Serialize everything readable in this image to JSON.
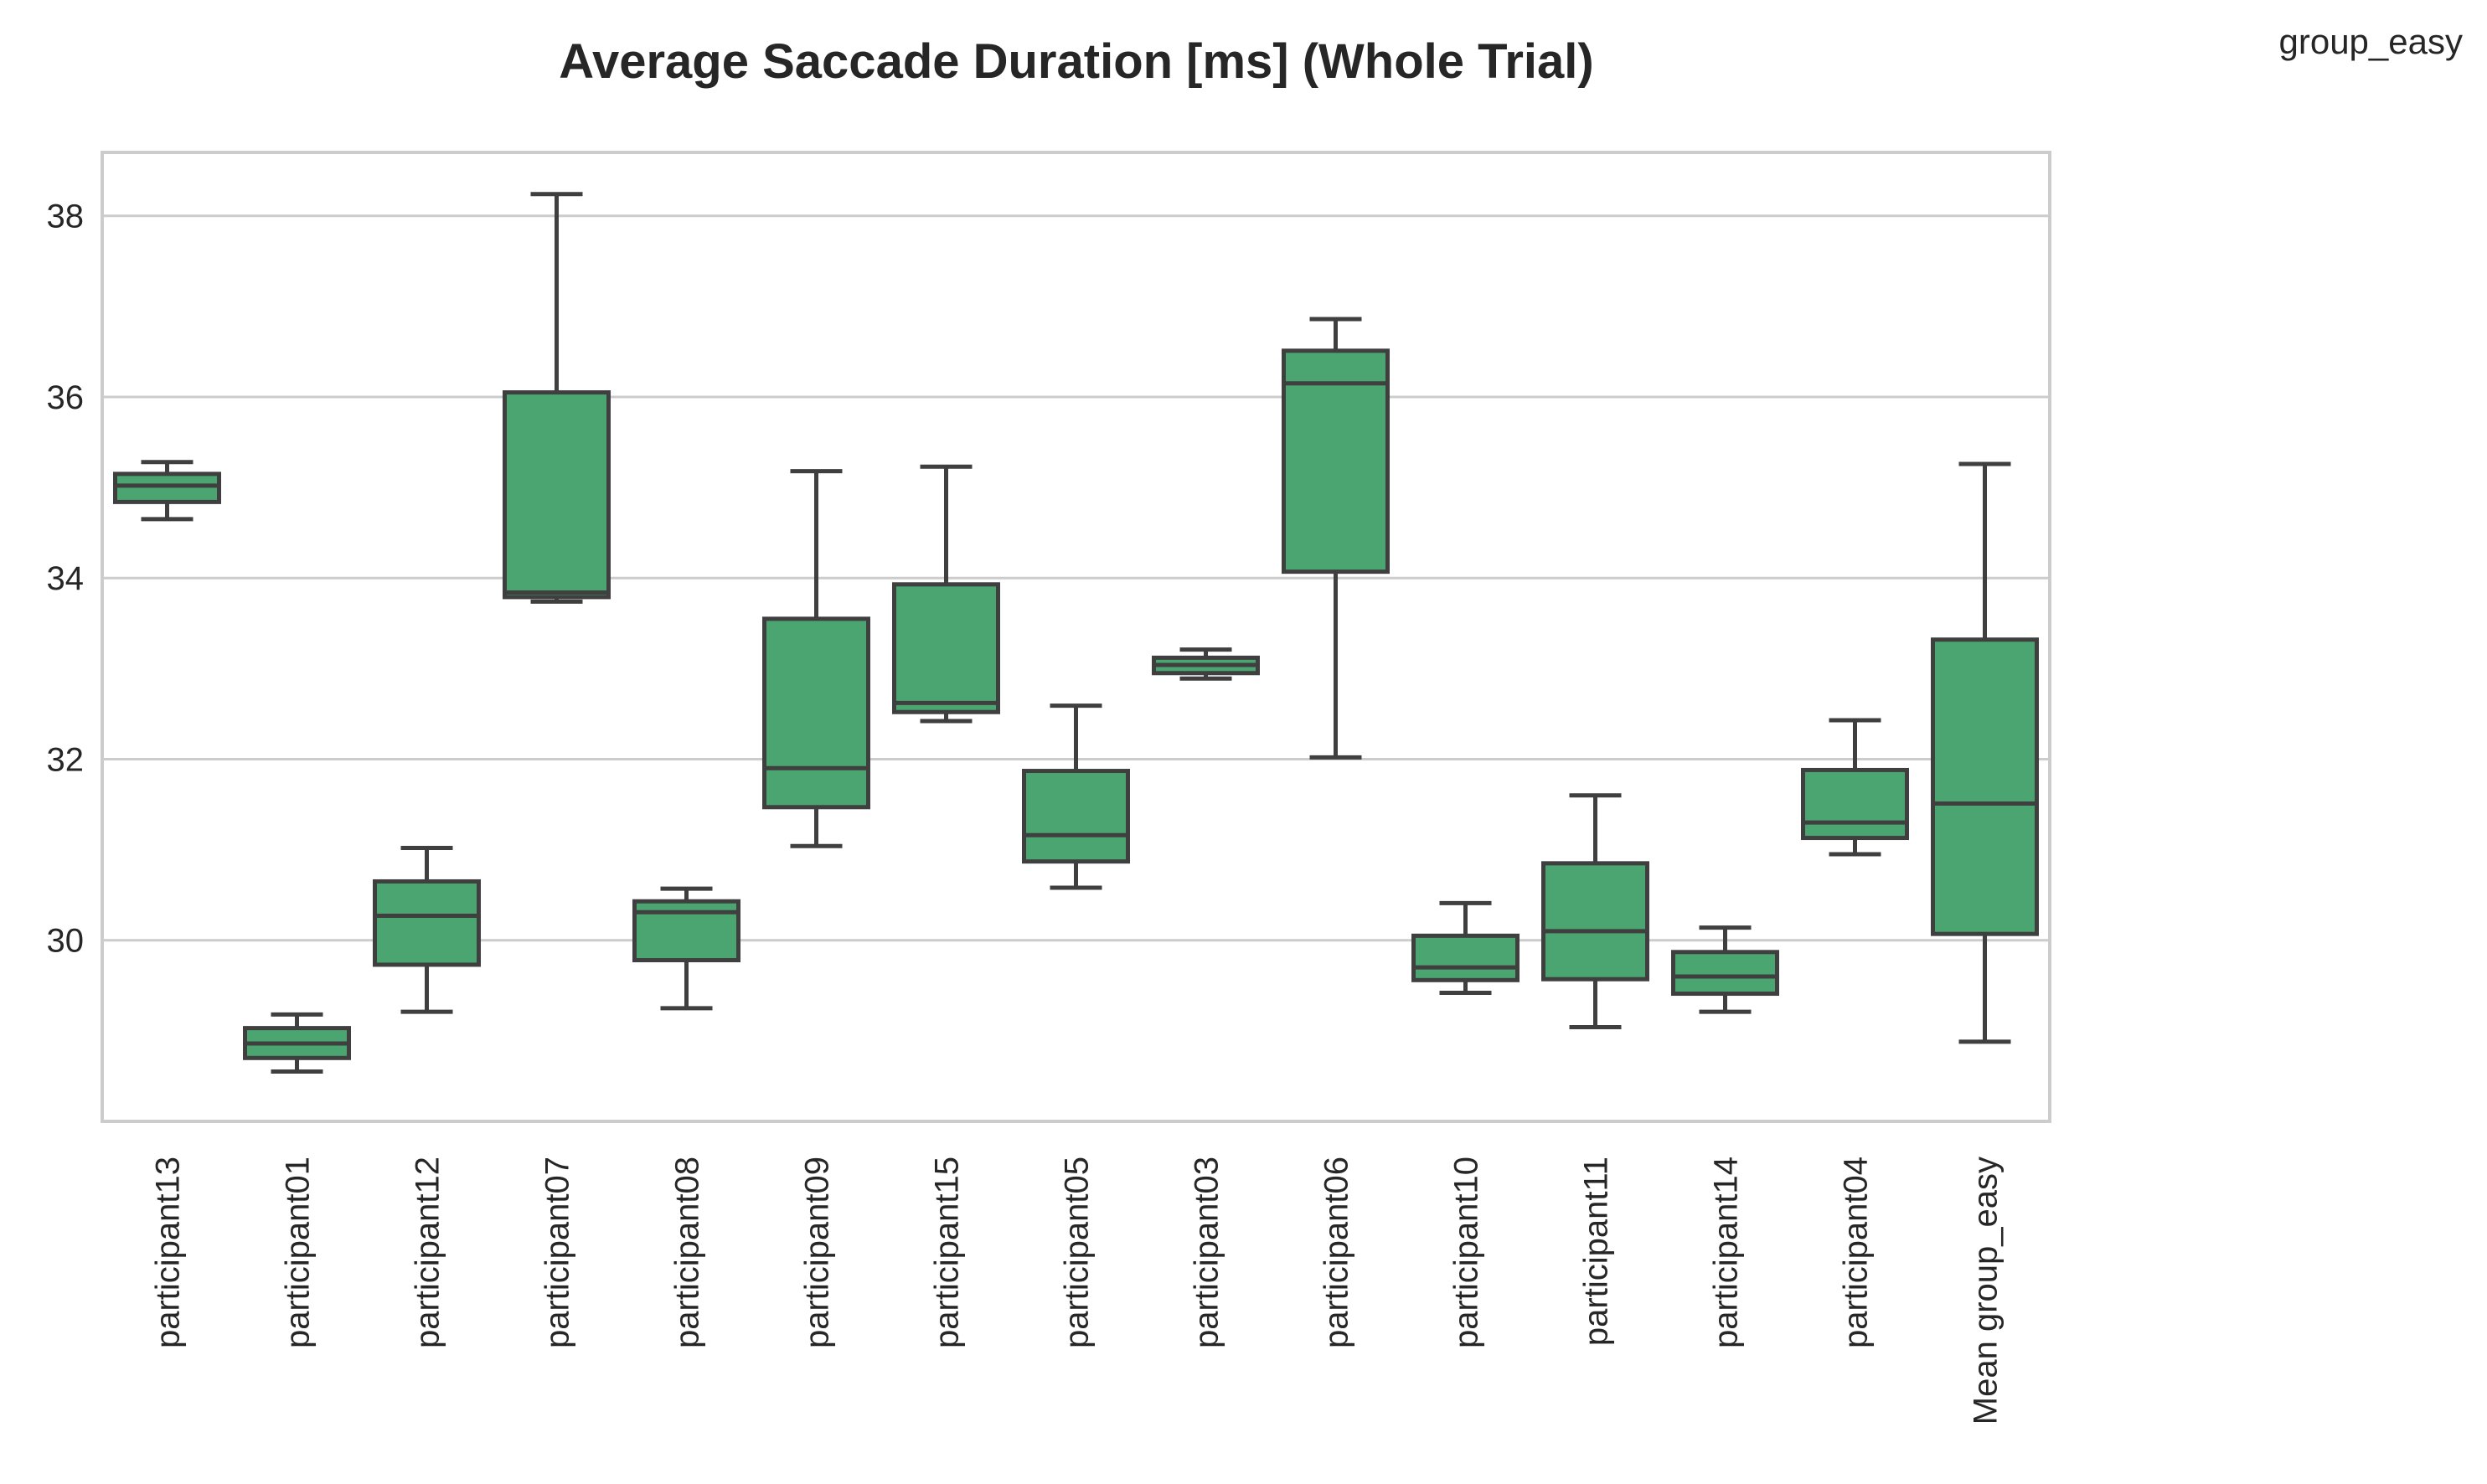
{
  "chart_data": {
    "type": "box",
    "title": "Average Saccade Duration [ms] (Whole Trial)",
    "legend_title": "group_easy",
    "legend_placement": "top-right",
    "xlabel": "",
    "ylabel": "",
    "ylim": [
      28.0,
      38.7
    ],
    "yticks": [
      30,
      32,
      34,
      36,
      38
    ],
    "grid": true,
    "box_color": "#4aa571",
    "line_color": "#3f3f3f",
    "categories": [
      "participant13",
      "participant01",
      "participant12",
      "participant07",
      "participant08",
      "participant09",
      "participant15",
      "participant05",
      "participant03",
      "participant06",
      "participant10",
      "participant11",
      "participant14",
      "participant04",
      "Mean group_easy"
    ],
    "boxes": [
      {
        "min": 34.65,
        "q1": 34.84,
        "median": 35.02,
        "q3": 35.15,
        "max": 35.28
      },
      {
        "min": 28.55,
        "q1": 28.7,
        "median": 28.86,
        "q3": 29.03,
        "max": 29.18
      },
      {
        "min": 29.21,
        "q1": 29.73,
        "median": 30.27,
        "q3": 30.65,
        "max": 31.02
      },
      {
        "min": 33.74,
        "q1": 33.79,
        "median": 33.84,
        "q3": 36.05,
        "max": 38.24
      },
      {
        "min": 29.25,
        "q1": 29.78,
        "median": 30.31,
        "q3": 30.43,
        "max": 30.57
      },
      {
        "min": 31.04,
        "q1": 31.47,
        "median": 31.9,
        "q3": 33.55,
        "max": 35.18
      },
      {
        "min": 32.42,
        "q1": 32.52,
        "median": 32.62,
        "q3": 33.93,
        "max": 35.23
      },
      {
        "min": 30.58,
        "q1": 30.87,
        "median": 31.16,
        "q3": 31.87,
        "max": 32.59
      },
      {
        "min": 32.89,
        "q1": 32.95,
        "median": 33.04,
        "q3": 33.12,
        "max": 33.21
      },
      {
        "min": 32.02,
        "q1": 34.07,
        "median": 36.15,
        "q3": 36.51,
        "max": 36.86
      },
      {
        "min": 29.42,
        "q1": 29.56,
        "median": 29.7,
        "q3": 30.05,
        "max": 30.41
      },
      {
        "min": 29.04,
        "q1": 29.57,
        "median": 30.1,
        "q3": 30.85,
        "max": 31.6
      },
      {
        "min": 29.21,
        "q1": 29.41,
        "median": 29.6,
        "q3": 29.87,
        "max": 30.14
      },
      {
        "min": 30.95,
        "q1": 31.13,
        "median": 31.3,
        "q3": 31.88,
        "max": 32.43
      },
      {
        "min": 28.88,
        "q1": 30.07,
        "median": 31.51,
        "q3": 33.32,
        "max": 35.26
      }
    ]
  }
}
